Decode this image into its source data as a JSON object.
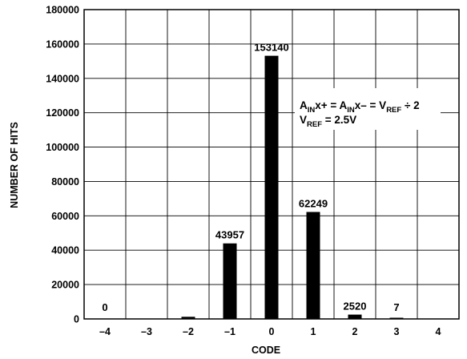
{
  "chart_data": {
    "type": "bar",
    "xlabel": "CODE",
    "ylabel": "NUMBER OF HITS",
    "ylim": [
      0,
      180000
    ],
    "yticks": [
      0,
      20000,
      40000,
      60000,
      80000,
      100000,
      120000,
      140000,
      160000,
      180000
    ],
    "ytick_labels": [
      "0",
      "20000",
      "40000",
      "60000",
      "80000",
      "100000",
      "120000",
      "140000",
      "160000",
      "180000"
    ],
    "categories": [
      "–4",
      "–3",
      "–2",
      "–1",
      "0",
      "1",
      "2",
      "3",
      "4"
    ],
    "values": [
      0,
      0,
      1250,
      43957,
      153140,
      62249,
      2520,
      7,
      0
    ],
    "data_labels": [
      "0",
      "",
      "",
      "43957",
      "153140",
      "62249",
      "2520",
      "7",
      ""
    ],
    "grid": true,
    "annotation": {
      "line1": {
        "a": "A",
        "a_sub": "IN",
        "b": "x+ = A",
        "c_sub": "IN",
        "d": "x– = V",
        "e_sub": "REF",
        "f": " ÷ 2"
      },
      "line2": {
        "a": "V",
        "a_sub": "REF",
        "b": " = 2.5V"
      }
    }
  }
}
